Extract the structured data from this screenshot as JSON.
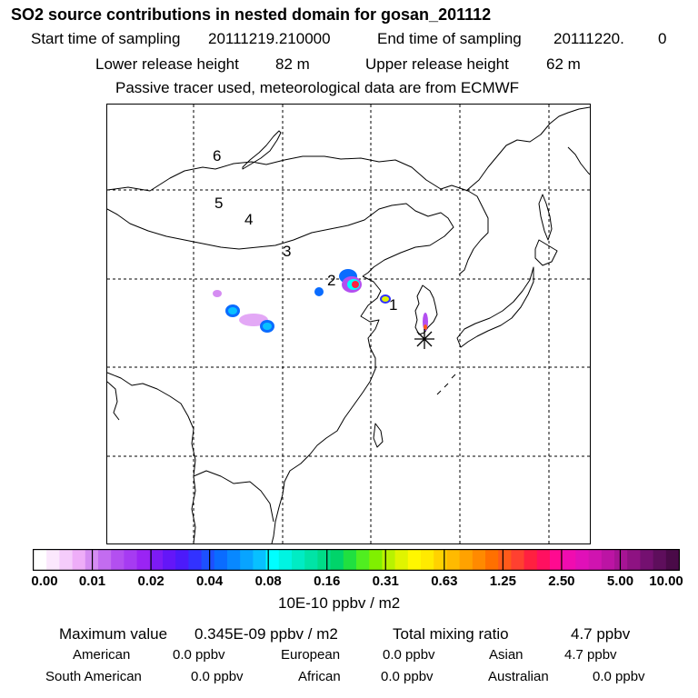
{
  "header": {
    "title": "SO2 source contributions in nested domain for gosan_201112",
    "start_label": "Start time of sampling",
    "start_value": "20111219.210000",
    "end_label": "End time of sampling",
    "end_value": "20111220.",
    "end_suffix": "0",
    "lower_label": "Lower release height",
    "lower_value": "82 m",
    "upper_label": "Upper release height",
    "upper_value": "62 m",
    "note": "Passive tracer used, meteorological data are from ECMWF"
  },
  "map": {
    "region_labels": [
      "1",
      "2",
      "3",
      "4",
      "5",
      "6"
    ],
    "receptor_marker": "asterisk-icon",
    "grid_style": "dashed",
    "colors": {
      "outline": "#000000",
      "grid": "#000000"
    }
  },
  "colorbar": {
    "ticks": [
      "0.00",
      "0.01",
      "0.02",
      "0.04",
      "0.08",
      "0.16",
      "0.31",
      "0.63",
      "1.25",
      "2.50",
      "5.00",
      "10.00"
    ],
    "colors": [
      "#ffffff",
      "#fbe8fd",
      "#f5ccfb",
      "#eeadf8",
      "#d58cf2",
      "#c36cf0",
      "#b34ff0",
      "#a63bf2",
      "#9a24f4",
      "#7d1bf5",
      "#6416f8",
      "#4c1afa",
      "#3232ff",
      "#1d50ff",
      "#0a6cff",
      "#0888ff",
      "#08a4ff",
      "#08c0ff",
      "#00ffff",
      "#00f4e2",
      "#00ecc4",
      "#00e4a6",
      "#00dc88",
      "#00d46a",
      "#20e040",
      "#50ee20",
      "#80f000",
      "#b8f200",
      "#e0f400",
      "#fff700",
      "#ffea00",
      "#ffd200",
      "#ffba00",
      "#ffa200",
      "#ff8a00",
      "#ff7000",
      "#ff5a1a",
      "#ff4030",
      "#ff2040",
      "#ff1060",
      "#ff0a90",
      "#f00cb0",
      "#e010b8",
      "#d014b0",
      "#bc14a4",
      "#a61494",
      "#8e1282",
      "#741070",
      "#5e0e5c",
      "#4a0a48"
    ],
    "units": "10E-10 ppbv / m2"
  },
  "stats": {
    "max_label": "Maximum value",
    "max_value": "0.345E-09 ppbv / m2",
    "total_label": "Total mixing ratio",
    "total_value": "4.7 ppbv"
  },
  "regions": [
    {
      "name": "American",
      "value": "0.0 ppbv"
    },
    {
      "name": "European",
      "value": "0.0 ppbv"
    },
    {
      "name": "Asian",
      "value": "4.7 ppbv"
    },
    {
      "name": "South American",
      "value": "0.0 ppbv"
    },
    {
      "name": "African",
      "value": "0.0 ppbv"
    },
    {
      "name": "Australian",
      "value": "0.0 ppbv"
    }
  ]
}
